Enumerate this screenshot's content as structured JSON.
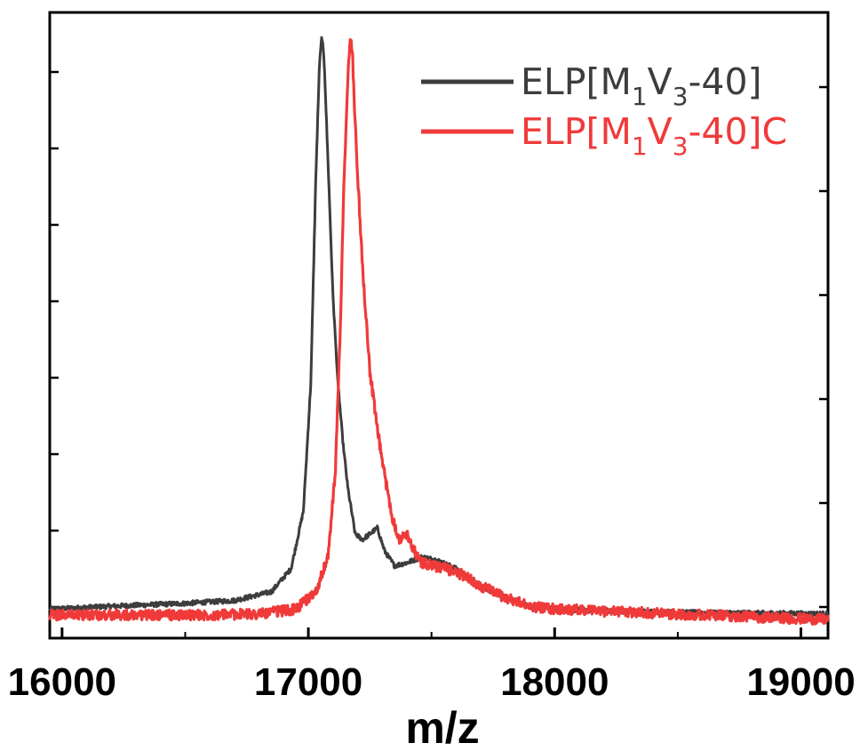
{
  "chart_data": {
    "type": "line",
    "xlabel": "m/z",
    "ylabel": "",
    "xlim": [
      15950,
      19110
    ],
    "ylim": [
      -0.04,
      1.04
    ],
    "x_ticks": [
      16000,
      17000,
      18000,
      19000
    ],
    "x_tick_labels": [
      "16000",
      "17000",
      "18000",
      "19000"
    ],
    "y_tick_labels_shown": false,
    "grid": false,
    "legend_position": "top-right",
    "series": [
      {
        "name": "ELP[M1V3-40]",
        "name_main": "ELP[M",
        "name_sub1": "1",
        "name_mid": "V",
        "name_sub2": "3",
        "name_end": "-40]",
        "color": "#3d3d3d",
        "x": [
          15950,
          16200,
          16500,
          16700,
          16850,
          16930,
          16980,
          17010,
          17030,
          17045,
          17055,
          17065,
          17080,
          17100,
          17120,
          17140,
          17160,
          17190,
          17220,
          17250,
          17280,
          17310,
          17350,
          17400,
          17460,
          17520,
          17600,
          17700,
          17800,
          17900,
          18000,
          18300,
          18600,
          18900,
          19110
        ],
        "y": [
          0.01,
          0.015,
          0.02,
          0.025,
          0.04,
          0.08,
          0.18,
          0.4,
          0.75,
          0.95,
          1.0,
          0.95,
          0.78,
          0.55,
          0.4,
          0.3,
          0.22,
          0.14,
          0.13,
          0.14,
          0.15,
          0.11,
          0.085,
          0.09,
          0.1,
          0.095,
          0.08,
          0.05,
          0.03,
          0.015,
          0.01,
          0.006,
          0.004,
          0.003,
          0.002
        ]
      },
      {
        "name": "ELP[M1V3-40]C",
        "name_main": "ELP[M",
        "name_sub1": "1",
        "name_mid": "V",
        "name_sub2": "3",
        "name_end": "-40]C",
        "color": "#f03a3a",
        "x": [
          15950,
          16300,
          16600,
          16800,
          16950,
          17030,
          17080,
          17110,
          17130,
          17145,
          17160,
          17170,
          17180,
          17190,
          17200,
          17220,
          17250,
          17280,
          17310,
          17340,
          17370,
          17400,
          17430,
          17460,
          17500,
          17560,
          17620,
          17700,
          17800,
          17900,
          18000,
          18300,
          18600,
          18900,
          19110
        ],
        "y": [
          0.0,
          0.0,
          0.0,
          0.002,
          0.01,
          0.04,
          0.1,
          0.25,
          0.5,
          0.75,
          0.92,
          1.0,
          0.96,
          0.85,
          0.76,
          0.6,
          0.42,
          0.32,
          0.24,
          0.17,
          0.13,
          0.14,
          0.11,
          0.09,
          0.085,
          0.08,
          0.07,
          0.05,
          0.03,
          0.015,
          0.01,
          0.005,
          0.0,
          -0.005,
          -0.008
        ]
      }
    ]
  }
}
